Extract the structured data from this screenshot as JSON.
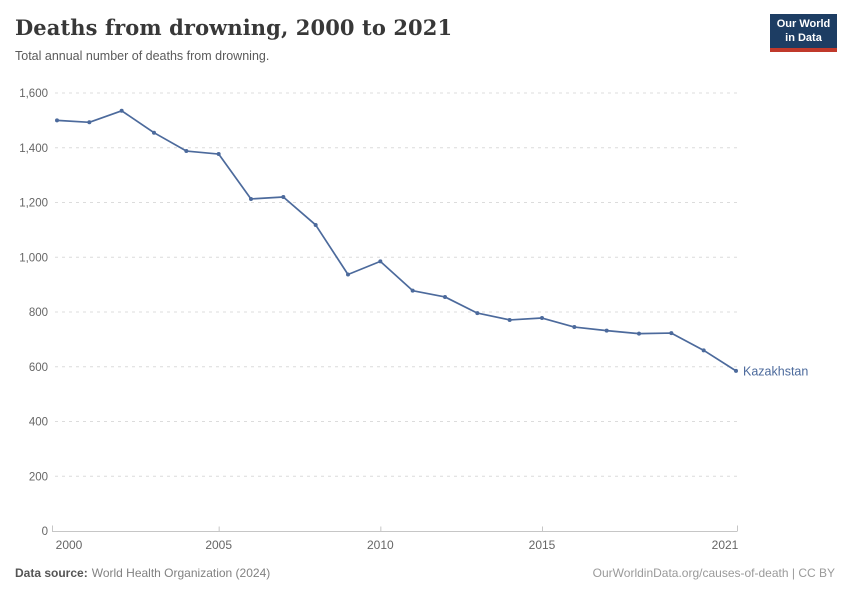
{
  "header": {
    "title": "Deaths from drowning, 2000 to 2021",
    "subtitle": "Total annual number of deaths from drowning.",
    "logo": {
      "line1": "Our World",
      "line2": "in Data",
      "bg_color": "#1d3d63",
      "accent_color": "#c0392b"
    }
  },
  "chart_data": {
    "type": "line",
    "title": "Deaths from drowning, 2000 to 2021",
    "subtitle": "Total annual number of deaths from drowning.",
    "x": [
      2000,
      2001,
      2002,
      2003,
      2004,
      2005,
      2006,
      2007,
      2008,
      2009,
      2010,
      2011,
      2012,
      2013,
      2014,
      2015,
      2016,
      2017,
      2018,
      2019,
      2020,
      2021
    ],
    "series": [
      {
        "name": "Kazakhstan",
        "color": "#4c6a9c",
        "values": [
          1500,
          1493,
          1535,
          1455,
          1388,
          1377,
          1213,
          1220,
          1118,
          937,
          985,
          878,
          855,
          796,
          771,
          778,
          745,
          732,
          721,
          723,
          660,
          585
        ]
      }
    ],
    "xlabel": "",
    "ylabel": "",
    "ylim": [
      0,
      1600
    ],
    "yticks": [
      0,
      200,
      400,
      600,
      800,
      1000,
      1200,
      1400,
      1600
    ],
    "ytick_labels": [
      "0",
      "200",
      "400",
      "600",
      "800",
      "1,000",
      "1,200",
      "1,400",
      "1,600"
    ],
    "xticks": [
      2000,
      2005,
      2010,
      2015,
      2021
    ],
    "grid": "horizontal-dashed",
    "legend_position": "end-of-line-label"
  },
  "footer": {
    "source_label": "Data source:",
    "source_value": "World Health Organization (2024)",
    "license": "OurWorldinData.org/causes-of-death | CC BY"
  }
}
